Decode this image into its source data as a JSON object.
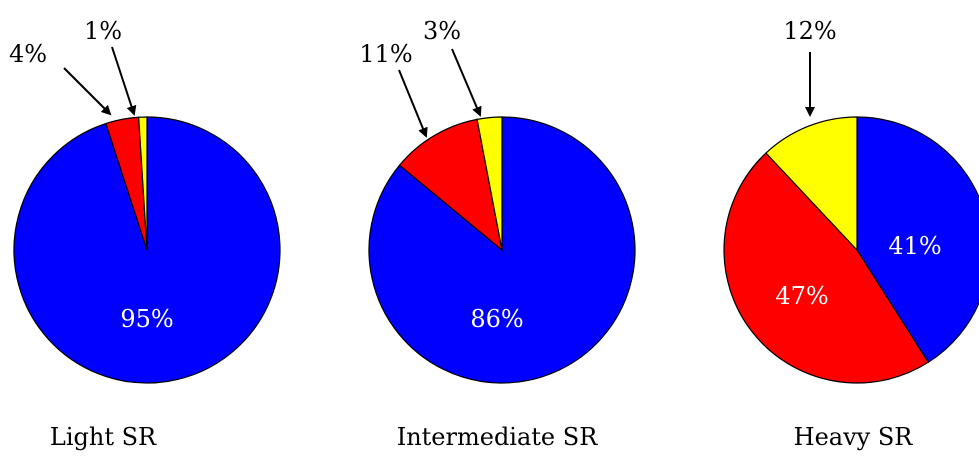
{
  "chart_data": [
    {
      "type": "pie",
      "title": "Light SR",
      "slices": [
        {
          "label": "95%",
          "value": 95,
          "color": "#0000ff",
          "label_placement": "inside"
        },
        {
          "label": "4%",
          "value": 4,
          "color": "#ff0000",
          "label_placement": "outside-arrow"
        },
        {
          "label": "1%",
          "value": 1,
          "color": "#ffff00",
          "label_placement": "outside-arrow"
        }
      ]
    },
    {
      "type": "pie",
      "title": "Intermediate SR",
      "slices": [
        {
          "label": "86%",
          "value": 86,
          "color": "#0000ff",
          "label_placement": "inside"
        },
        {
          "label": "11%",
          "value": 11,
          "color": "#ff0000",
          "label_placement": "outside-arrow"
        },
        {
          "label": "3%",
          "value": 3,
          "color": "#ffff00",
          "label_placement": "outside-arrow"
        }
      ]
    },
    {
      "type": "pie",
      "title": "Heavy SR",
      "slices": [
        {
          "label": "41%",
          "value": 41,
          "color": "#0000ff",
          "label_placement": "inside"
        },
        {
          "label": "47%",
          "value": 47,
          "color": "#ff0000",
          "label_placement": "inside"
        },
        {
          "label": "12%",
          "value": 12,
          "color": "#ffff00",
          "label_placement": "outside-arrow"
        }
      ]
    }
  ]
}
